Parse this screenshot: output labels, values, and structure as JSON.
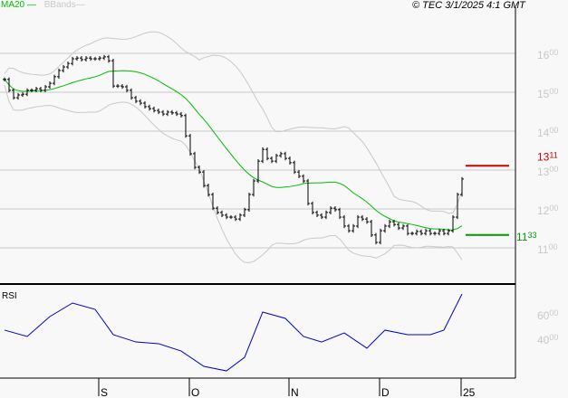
{
  "legend": {
    "ma_label": "MA20",
    "bb_label": "BBands"
  },
  "copyright": "© TEC 3/1/2025 4:1 GMT",
  "colors": {
    "ma": "#00bb00",
    "bbands": "#c8c8c8",
    "bars": "#000000",
    "rsi": "#0000cc",
    "resistance": "#cc0000",
    "support": "#009900",
    "grid": "#c8c8c8"
  },
  "chart_data": [
    {
      "type": "bar",
      "subtype": "ohlc",
      "ylim": [
        10.5,
        17.6
      ],
      "yticks": [
        {
          "main": "16",
          "sup": "00",
          "value": 16
        },
        {
          "main": "15",
          "sup": "00",
          "value": 15
        },
        {
          "main": "14",
          "sup": "00",
          "value": 14
        },
        {
          "main": "13",
          "sup": "00",
          "value": 13
        },
        {
          "main": "12",
          "sup": "00",
          "value": 12
        },
        {
          "main": "11",
          "sup": "00",
          "value": 11
        }
      ],
      "xticks": [
        {
          "label": "S",
          "index": 21
        },
        {
          "label": "O",
          "index": 41
        },
        {
          "label": "N",
          "index": 63
        },
        {
          "label": "D",
          "index": 83
        },
        {
          "label": "25",
          "index": 101
        }
      ],
      "grid": true,
      "indicators": [
        "MA20",
        "BBands"
      ],
      "closes": [
        15.33,
        15.05,
        14.86,
        14.93,
        14.95,
        15.05,
        15.05,
        15.09,
        15.05,
        15.14,
        15.23,
        15.4,
        15.56,
        15.65,
        15.74,
        15.86,
        15.88,
        15.84,
        15.88,
        15.86,
        15.86,
        15.88,
        15.91,
        15.81,
        15.16,
        15.16,
        15.14,
        15.05,
        14.86,
        14.77,
        14.72,
        14.63,
        14.58,
        14.53,
        14.49,
        14.44,
        14.49,
        14.47,
        14.44,
        14.4,
        13.88,
        13.42,
        13.07,
        12.95,
        12.6,
        12.37,
        12.02,
        11.91,
        11.84,
        11.79,
        11.79,
        11.74,
        11.84,
        11.98,
        12.37,
        12.72,
        13.23,
        13.53,
        13.3,
        13.23,
        13.37,
        13.42,
        13.3,
        13.19,
        12.95,
        12.84,
        12.72,
        12.14,
        11.91,
        11.84,
        11.79,
        11.91,
        12.02,
        11.98,
        11.79,
        11.56,
        11.44,
        11.56,
        11.79,
        11.74,
        11.67,
        11.33,
        11.14,
        11.44,
        11.56,
        11.67,
        11.6,
        11.51,
        11.56,
        11.37,
        11.37,
        11.42,
        11.37,
        11.44,
        11.37,
        11.37,
        11.44,
        11.37,
        11.44,
        11.79,
        12.37,
        12.77
      ],
      "levels": [
        {
          "value": 13.11,
          "main": "13",
          "sup": "11",
          "kind": "resistance"
        },
        {
          "value": 11.33,
          "main": "11",
          "sup": "33",
          "kind": "support"
        }
      ]
    },
    {
      "type": "line",
      "title": "RSI",
      "ylim": [
        0,
        100
      ],
      "yticks": [
        {
          "main": "60",
          "sup": "00",
          "value": 60
        },
        {
          "main": "40",
          "sup": "00",
          "value": 40
        }
      ],
      "points": [
        [
          0,
          46.7
        ],
        [
          5,
          41.5
        ],
        [
          10,
          57.8
        ],
        [
          15,
          68.9
        ],
        [
          20,
          63.7
        ],
        [
          24,
          43
        ],
        [
          29,
          37
        ],
        [
          34,
          35.6
        ],
        [
          39,
          29.6
        ],
        [
          44,
          17
        ],
        [
          49,
          13.3
        ],
        [
          53,
          24.4
        ],
        [
          57,
          61.5
        ],
        [
          62,
          56.3
        ],
        [
          66,
          41.5
        ],
        [
          70,
          37
        ],
        [
          75,
          44.4
        ],
        [
          80,
          31.9
        ],
        [
          84,
          46.7
        ],
        [
          89,
          43
        ],
        [
          94,
          43
        ],
        [
          97,
          46.7
        ],
        [
          99,
          61.5
        ],
        [
          101,
          76.3
        ]
      ]
    }
  ]
}
